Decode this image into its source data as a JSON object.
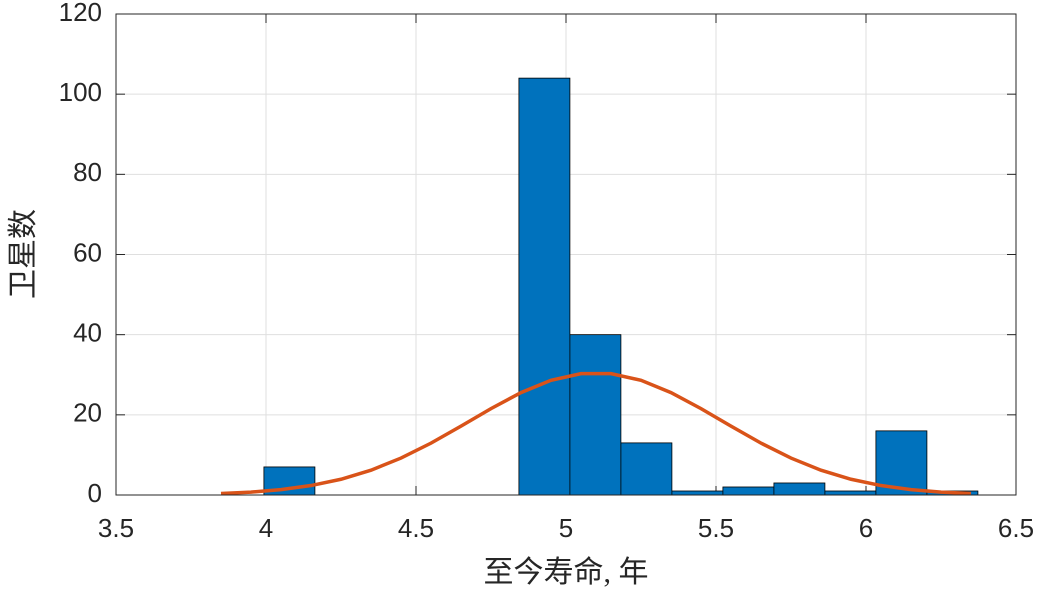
{
  "chart_data": {
    "type": "histogram",
    "xlabel": "至今寿命, 年",
    "ylabel": "卫星数",
    "bins": [
      3.823,
      3.993,
      4.163,
      4.333,
      4.503,
      4.673,
      4.843,
      5.013,
      5.183,
      5.353,
      5.523,
      5.693,
      5.863,
      6.033,
      6.203,
      6.373
    ],
    "counts": [
      0,
      7,
      0,
      0,
      0,
      0,
      104,
      40,
      13,
      1,
      2,
      3,
      1,
      16,
      1
    ],
    "color": "#0072bd",
    "fit": {
      "type": "line",
      "color": "#d95319",
      "x": [
        3.85,
        3.95,
        4.05,
        4.15,
        4.25,
        4.35,
        4.45,
        4.55,
        4.65,
        4.75,
        4.85,
        4.95,
        5.05,
        5.15,
        5.25,
        5.35,
        5.45,
        5.55,
        5.65,
        5.75,
        5.85,
        5.95,
        6.05,
        6.15,
        6.25,
        6.35
      ],
      "values": [
        0.36,
        0.72,
        1.34,
        2.36,
        3.93,
        6.19,
        9.21,
        12.94,
        17.18,
        21.55,
        25.55,
        28.62,
        30.28,
        30.28,
        28.62,
        25.55,
        21.55,
        17.18,
        12.94,
        9.21,
        6.19,
        3.93,
        2.36,
        1.34,
        0.72,
        0.36
      ]
    },
    "xlim": [
      3.5,
      6.5
    ],
    "xticks": [
      3.5,
      4,
      4.5,
      5,
      5.5,
      6,
      6.5
    ],
    "ylim": [
      0,
      120
    ],
    "yticks": [
      0,
      20,
      40,
      60,
      80,
      100,
      120
    ],
    "grid": true
  }
}
